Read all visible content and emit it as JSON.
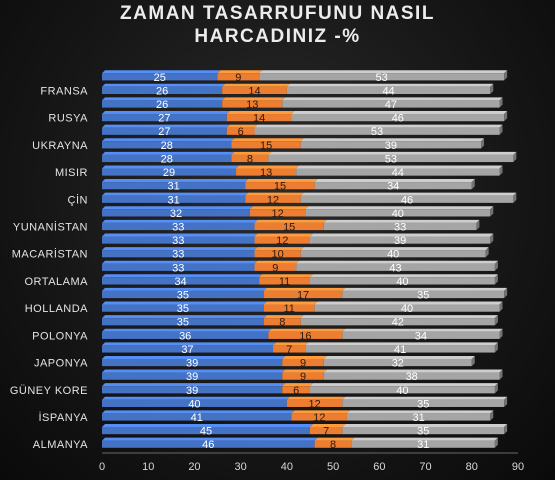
{
  "chart_data": {
    "type": "bar",
    "orientation": "horizontal",
    "stacked": true,
    "title_lines": [
      "ZAMAN TASARRUFUNU NASIL",
      "HARCADINIZ  -%"
    ],
    "categories": [
      "ALMANYA",
      "",
      "İSPANYA",
      "",
      "GÜNEY KORE",
      "",
      "JAPONYA",
      "",
      "POLONYA",
      "",
      "HOLLANDA",
      "",
      "ORTALAMA",
      "",
      "MACARİSTAN",
      "",
      "YUNANİSTAN",
      "",
      "ÇİN",
      "",
      "MISIR",
      "",
      "UKRAYNA",
      "",
      "RUSYA",
      "",
      "FRANSA",
      ""
    ],
    "series": [
      {
        "color": "#4472c4",
        "values": [
          46,
          45,
          41,
          40,
          39,
          39,
          39,
          37,
          36,
          35,
          35,
          35,
          34,
          33,
          33,
          33,
          33,
          32,
          31,
          31,
          29,
          28,
          28,
          27,
          27,
          26,
          26,
          25
        ]
      },
      {
        "color": "#ed7d31",
        "values": [
          8,
          7,
          12,
          12,
          6,
          9,
          9,
          7,
          16,
          8,
          11,
          17,
          11,
          9,
          10,
          12,
          15,
          12,
          12,
          15,
          13,
          8,
          15,
          6,
          14,
          13,
          14,
          9
        ]
      },
      {
        "color": "#a5a5a5",
        "values": [
          31,
          35,
          31,
          35,
          40,
          38,
          32,
          41,
          34,
          42,
          40,
          35,
          40,
          43,
          40,
          39,
          33,
          40,
          46,
          34,
          44,
          53,
          39,
          53,
          46,
          47,
          44,
          53
        ]
      }
    ],
    "xlim": [
      0,
      90
    ],
    "xticks": [
      0,
      10,
      20,
      30,
      40,
      50,
      60,
      70,
      80,
      90
    ],
    "grid": false,
    "legend": "none",
    "colors": {
      "background": "#141414",
      "text": "#e4e4e4",
      "axis": "#6a6a6a"
    }
  }
}
